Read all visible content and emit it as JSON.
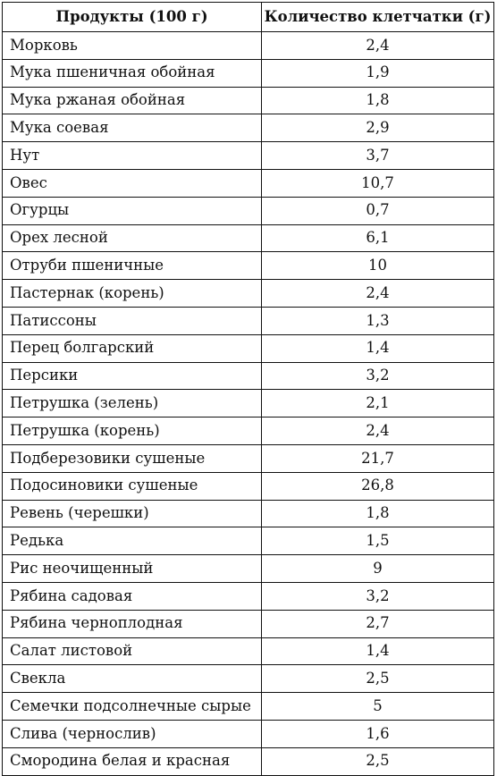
{
  "table": {
    "headers": [
      "Продукты (100 г)",
      "Количество клетчатки (г)"
    ],
    "rows": [
      [
        "Морковь",
        "2,4"
      ],
      [
        "Мука пшеничная обойная",
        "1,9"
      ],
      [
        "Мука ржаная обойная",
        "1,8"
      ],
      [
        "Мука соевая",
        "2,9"
      ],
      [
        "Нут",
        "3,7"
      ],
      [
        "Овес",
        "10,7"
      ],
      [
        "Огурцы",
        "0,7"
      ],
      [
        "Орех лесной",
        "6,1"
      ],
      [
        "Отруби пшеничные",
        "10"
      ],
      [
        "Пастернак (корень)",
        "2,4"
      ],
      [
        "Патиссоны",
        "1,3"
      ],
      [
        "Перец болгарский",
        "1,4"
      ],
      [
        "Персики",
        "3,2"
      ],
      [
        "Петрушка (зелень)",
        "2,1"
      ],
      [
        "Петрушка (корень)",
        "2,4"
      ],
      [
        "Подберезовики сушеные",
        "21,7"
      ],
      [
        "Подосиновики сушеные",
        "26,8"
      ],
      [
        "Ревень (черешки)",
        "1,8"
      ],
      [
        "Редька",
        "1,5"
      ],
      [
        "Рис неочищенный",
        "9"
      ],
      [
        "Рябина садовая",
        "3,2"
      ],
      [
        "Рябина черноплодная",
        "2,7"
      ],
      [
        "Салат листовой",
        "1,4"
      ],
      [
        "Свекла",
        "2,5"
      ],
      [
        "Семечки подсолнечные сырые",
        "5"
      ],
      [
        "Слива (чернослив)",
        "1,6"
      ],
      [
        "Смородина белая и красная",
        "2,5"
      ]
    ]
  }
}
